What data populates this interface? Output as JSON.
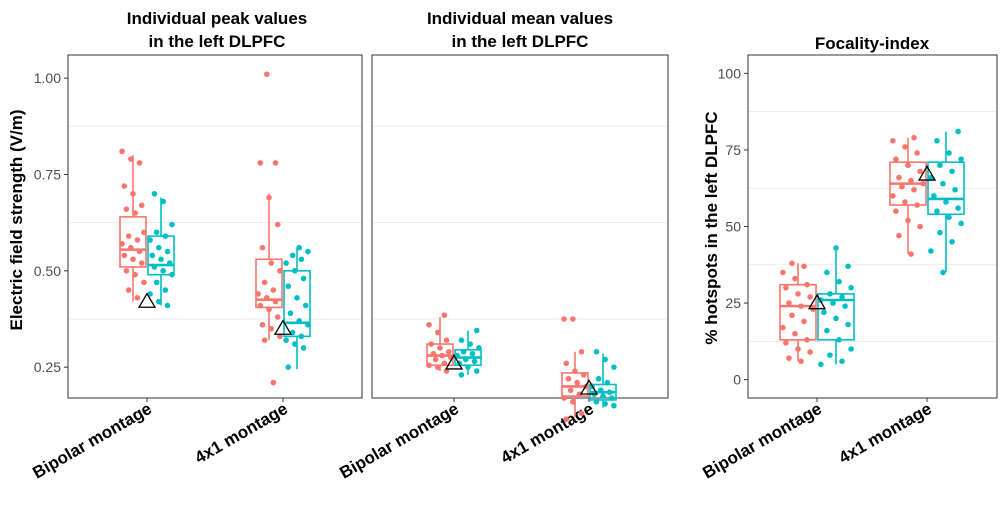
{
  "colors": {
    "bipolar": "#F8766D",
    "4x1": "#00BFC4",
    "marker": "#000000",
    "grid": "#ebebeb"
  },
  "chart_data": [
    {
      "type": "box",
      "title_line1": "Individual peak values",
      "title_line2": "in the left DLPFC",
      "ylabel": "Electric field strength (V/m)",
      "ylim": [
        0.17,
        1.06
      ],
      "yticks": [
        0.25,
        0.5,
        0.75,
        1.0
      ],
      "ytick_labels": [
        "0.25",
        "0.50",
        "0.75",
        "1.00"
      ],
      "categories": [
        "Bipolar montage",
        "4x1 montage"
      ],
      "boxes": [
        {
          "category": "Bipolar montage",
          "group": "bipolar",
          "q1": 0.51,
          "median": 0.555,
          "q3": 0.64,
          "whisker_low": 0.42,
          "whisker_high": 0.8,
          "points": [
            0.81,
            0.79,
            0.78,
            0.72,
            0.7,
            0.67,
            0.66,
            0.65,
            0.6,
            0.59,
            0.58,
            0.57,
            0.56,
            0.55,
            0.54,
            0.53,
            0.52,
            0.5,
            0.49,
            0.47,
            0.45,
            0.43
          ]
        },
        {
          "category": "Bipolar montage",
          "group": "4x1",
          "q1": 0.49,
          "median": 0.515,
          "q3": 0.59,
          "whisker_low": 0.41,
          "whisker_high": 0.69,
          "points": [
            0.7,
            0.68,
            0.62,
            0.6,
            0.59,
            0.58,
            0.56,
            0.55,
            0.54,
            0.53,
            0.52,
            0.51,
            0.5,
            0.49,
            0.47,
            0.45,
            0.44,
            0.42,
            0.41
          ]
        },
        {
          "category": "4x1 montage",
          "group": "bipolar",
          "q1": 0.405,
          "median": 0.425,
          "q3": 0.53,
          "whisker_low": 0.32,
          "whisker_high": 0.7,
          "points": [
            1.01,
            0.78,
            0.78,
            0.69,
            0.62,
            0.56,
            0.52,
            0.5,
            0.47,
            0.45,
            0.44,
            0.43,
            0.42,
            0.41,
            0.4,
            0.38,
            0.36,
            0.35,
            0.33,
            0.32,
            0.21
          ]
        },
        {
          "category": "4x1 montage",
          "group": "4x1",
          "q1": 0.33,
          "median": 0.365,
          "q3": 0.5,
          "whisker_low": 0.245,
          "whisker_high": 0.56,
          "points": [
            0.56,
            0.55,
            0.54,
            0.53,
            0.52,
            0.5,
            0.48,
            0.46,
            0.43,
            0.41,
            0.39,
            0.37,
            0.36,
            0.34,
            0.33,
            0.32,
            0.31,
            0.3,
            0.25
          ]
        }
      ],
      "markers": [
        {
          "category": "Bipolar montage",
          "value": 0.42
        },
        {
          "category": "4x1 montage",
          "value": 0.35
        }
      ],
      "grid": true
    },
    {
      "type": "box",
      "title_line1": "Individual mean values",
      "title_line2": "in the left DLPFC",
      "ylim": [
        0.17,
        1.06
      ],
      "categories": [
        "Bipolar montage",
        "4x1 montage"
      ],
      "boxes": [
        {
          "category": "Bipolar montage",
          "group": "bipolar",
          "q1": 0.255,
          "median": 0.28,
          "q3": 0.31,
          "whisker_low": 0.24,
          "whisker_high": 0.38,
          "points": [
            0.385,
            0.36,
            0.34,
            0.32,
            0.31,
            0.3,
            0.29,
            0.285,
            0.28,
            0.275,
            0.27,
            0.26,
            0.255,
            0.25,
            0.24
          ]
        },
        {
          "category": "Bipolar montage",
          "group": "4x1",
          "q1": 0.255,
          "median": 0.275,
          "q3": 0.295,
          "whisker_low": 0.23,
          "whisker_high": 0.345,
          "points": [
            0.345,
            0.32,
            0.31,
            0.3,
            0.29,
            0.285,
            0.28,
            0.27,
            0.265,
            0.26,
            0.25,
            0.24,
            0.23
          ]
        },
        {
          "category": "4x1 montage",
          "group": "bipolar",
          "q1": 0.175,
          "median": 0.2,
          "q3": 0.235,
          "whisker_low": 0.12,
          "whisker_high": 0.29,
          "points": [
            0.375,
            0.375,
            0.29,
            0.26,
            0.24,
            0.23,
            0.22,
            0.21,
            0.2,
            0.19,
            0.18,
            0.17,
            0.16,
            0.13,
            0.115
          ]
        },
        {
          "category": "4x1 montage",
          "group": "4x1",
          "q1": 0.165,
          "median": 0.185,
          "q3": 0.205,
          "whisker_low": 0.145,
          "whisker_high": 0.285,
          "points": [
            0.29,
            0.27,
            0.25,
            0.22,
            0.21,
            0.2,
            0.19,
            0.185,
            0.18,
            0.175,
            0.17,
            0.16,
            0.155,
            0.15
          ]
        }
      ],
      "markers": [
        {
          "category": "Bipolar montage",
          "value": 0.26
        },
        {
          "category": "4x1 montage",
          "value": 0.195
        }
      ],
      "grid": true
    },
    {
      "type": "box",
      "title_line1": "Focality-index",
      "ylabel": "% hotspots in the left DLPFC",
      "ylim": [
        -6,
        106
      ],
      "yticks": [
        0,
        25,
        50,
        75,
        100
      ],
      "ytick_labels": [
        "0",
        "25",
        "50",
        "75",
        "100"
      ],
      "categories": [
        "Bipolar montage",
        "4x1 montage"
      ],
      "boxes": [
        {
          "category": "Bipolar montage",
          "group": "bipolar",
          "q1": 13,
          "median": 24,
          "q3": 31,
          "whisker_low": 6,
          "whisker_high": 38,
          "points": [
            38,
            37,
            35,
            33,
            31,
            30,
            28,
            27,
            25,
            24,
            23,
            21,
            19,
            17,
            15,
            13,
            12,
            10,
            9,
            7,
            6
          ]
        },
        {
          "category": "Bipolar montage",
          "group": "4x1",
          "q1": 13,
          "median": 26,
          "q3": 28,
          "whisker_low": 5,
          "whisker_high": 43,
          "points": [
            43,
            37,
            35,
            32,
            30,
            28,
            27,
            26,
            25,
            24,
            22,
            20,
            18,
            16,
            13,
            10,
            8,
            6,
            5
          ]
        },
        {
          "category": "4x1 montage",
          "group": "bipolar",
          "q1": 57,
          "median": 64,
          "q3": 71,
          "whisker_low": 41,
          "whisker_high": 79,
          "points": [
            79,
            78,
            76,
            74,
            72,
            70,
            68,
            66,
            65,
            64,
            63,
            62,
            60,
            58,
            57,
            55,
            52,
            50,
            47,
            41
          ]
        },
        {
          "category": "4x1 montage",
          "group": "4x1",
          "q1": 54,
          "median": 59,
          "q3": 71,
          "whisker_low": 35,
          "whisker_high": 81,
          "points": [
            81,
            78,
            74,
            72,
            70,
            68,
            66,
            64,
            62,
            60,
            58,
            56,
            55,
            53,
            51,
            48,
            45,
            42,
            35
          ]
        }
      ],
      "markers": [
        {
          "category": "Bipolar montage",
          "value": 25
        },
        {
          "category": "4x1 montage",
          "value": 67
        }
      ],
      "grid": true
    }
  ]
}
